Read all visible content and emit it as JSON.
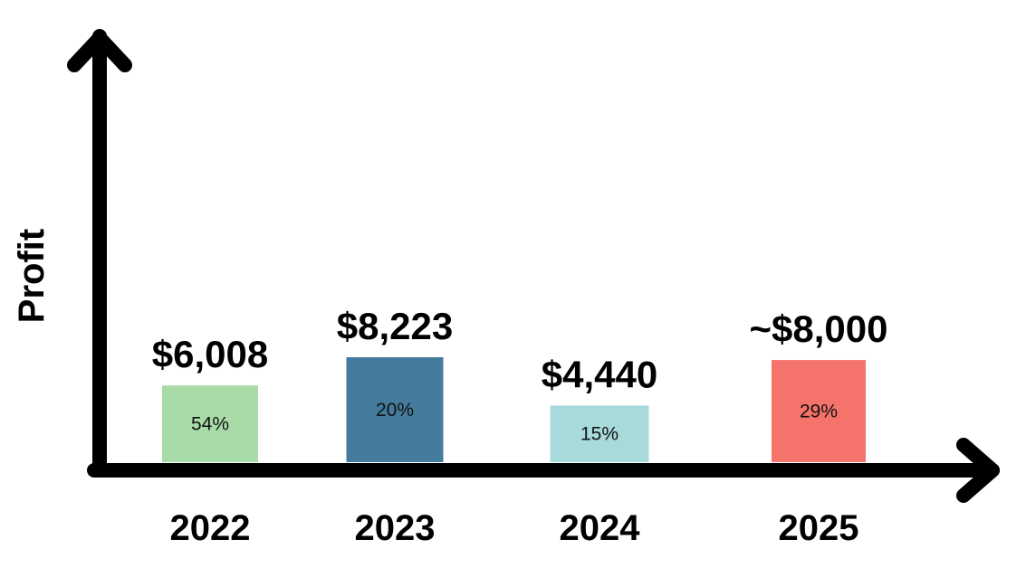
{
  "chart_data": {
    "type": "bar",
    "title": "",
    "xlabel": "",
    "ylabel": "Profit",
    "categories": [
      "2022",
      "2023",
      "2024",
      "2025"
    ],
    "values": [
      6008,
      8223,
      4440,
      8000
    ],
    "value_labels": [
      "$6,008",
      "$8,223",
      "$4,440",
      "~$8,000"
    ],
    "percent_labels": [
      "54%",
      "20%",
      "15%",
      "29%"
    ],
    "colors": [
      "#a8dba8",
      "#457b9d",
      "#a8dadc",
      "#f4736a"
    ],
    "axis_color": "#000000",
    "grid": false,
    "legend": "none"
  }
}
